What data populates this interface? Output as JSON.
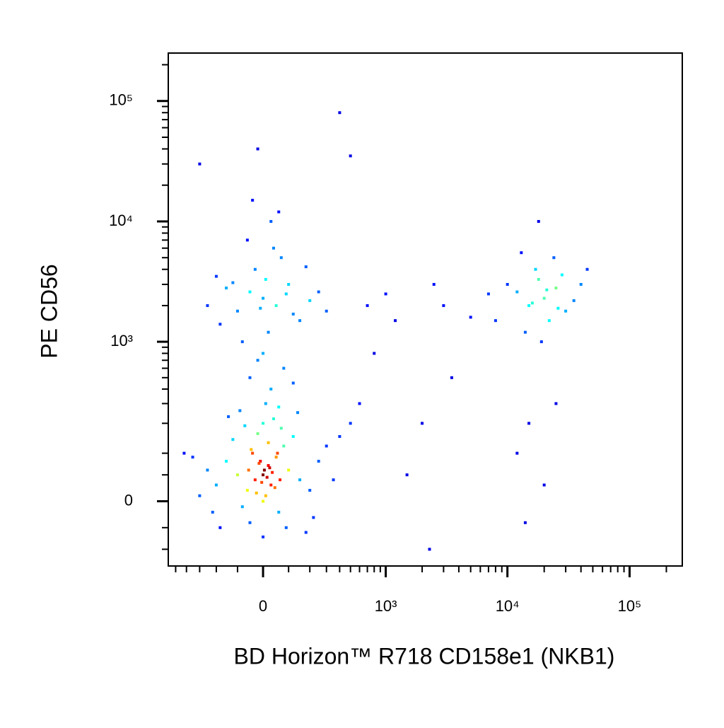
{
  "chart_data": {
    "type": "scatter",
    "xlabel": "BD Horizon™ R718 CD158e1 (NKB1)",
    "ylabel": "PE CD56",
    "xscale": "biexponential",
    "yscale": "biexponential",
    "colormap": "jet",
    "xlim": [
      -580,
      270000
    ],
    "ylim": [
      -150,
      250000
    ],
    "xticks": [
      {
        "value": 0,
        "label": "0"
      },
      {
        "value": 1000,
        "label": "10³"
      },
      {
        "value": 10000,
        "label": "10⁴"
      },
      {
        "value": 100000,
        "label": "10⁵"
      }
    ],
    "yticks": [
      {
        "value": 0,
        "label": "0"
      },
      {
        "value": 1000,
        "label": "10³"
      },
      {
        "value": 10000,
        "label": "10⁴"
      },
      {
        "value": 100000,
        "label": "10⁵"
      }
    ],
    "xminorticks": [
      -500,
      -400,
      -300,
      -200,
      -100,
      100,
      200,
      300,
      400,
      500,
      600,
      700,
      800,
      900,
      2000,
      3000,
      4000,
      5000,
      6000,
      7000,
      8000,
      9000,
      20000,
      30000,
      40000,
      50000,
      60000,
      70000,
      80000,
      90000,
      200000
    ],
    "yminorticks": [
      -100,
      -50,
      50,
      100,
      200,
      300,
      400,
      500,
      600,
      700,
      800,
      900,
      2000,
      3000,
      4000,
      5000,
      6000,
      7000,
      8000,
      9000,
      20000,
      30000,
      40000,
      50000,
      60000,
      70000,
      80000,
      90000,
      200000
    ],
    "x": [
      0,
      20,
      -30,
      50,
      -60,
      80,
      10,
      -10,
      30,
      -40,
      100,
      -100,
      60,
      -80,
      150,
      -150,
      120,
      -120,
      200,
      -200,
      0,
      40,
      -50,
      90,
      250,
      -250,
      300,
      -300,
      180,
      -180,
      0,
      20,
      -20,
      70,
      -70,
      140,
      -140,
      350,
      -350,
      220,
      -220,
      10,
      60,
      -90,
      400,
      -420,
      5,
      15,
      -5,
      25,
      -15,
      35,
      45,
      -25,
      55,
      -45,
      65,
      -55,
      0,
      500,
      30,
      -50,
      80,
      -20,
      120,
      0,
      0,
      50,
      -50,
      100,
      -100,
      150,
      -150,
      200,
      -200,
      20,
      -30,
      70,
      -80,
      250,
      -250,
      10,
      120,
      -120,
      180,
      -180,
      40,
      -60,
      90,
      -10,
      300,
      30,
      -40,
      60,
      400,
      -20,
      500,
      -300,
      20000,
      15000,
      25000,
      18000,
      30000,
      12000,
      22000,
      17000,
      28000,
      14000,
      35000,
      10000,
      24000,
      19000,
      40000,
      13000,
      21000,
      16000,
      26000,
      18000,
      45000,
      8000,
      15000,
      12000,
      20000,
      25000,
      14000,
      1000,
      2500,
      3000,
      2000,
      1500,
      3500,
      800,
      600,
      2300,
      700,
      1200,
      5000,
      7000
    ],
    "values": [
      50,
      70,
      40,
      90,
      20,
      120,
      10,
      80,
      30,
      100,
      60,
      50,
      -20,
      -10,
      40,
      80,
      150,
      140,
      20,
      30,
      200,
      220,
      -40,
      -50,
      80,
      60,
      120,
      10,
      -60,
      -50,
      -70,
      130,
      160,
      180,
      190,
      250,
      230,
      40,
      90,
      -30,
      -20,
      300,
      280,
      260,
      150,
      100,
      60,
      45,
      35,
      65,
      75,
      55,
      25,
      15,
      100,
      110,
      40,
      60,
      0,
      200,
      400,
      500,
      600,
      700,
      450,
      800,
      2300,
      2000,
      2600,
      3000,
      1800,
      1500,
      2800,
      2200,
      3500,
      1200,
      4000,
      5000,
      1000,
      2600,
      2000,
      3300,
      1700,
      3100,
      4200,
      1400,
      6000,
      7000,
      2500,
      1900,
      1800,
      10000,
      15000,
      12000,
      80000,
      40000,
      35000,
      30000,
      2300,
      2000,
      2800,
      3300,
      1800,
      2600,
      1500,
      4000,
      3600,
      1200,
      2200,
      3000,
      5000,
      1000,
      3000,
      5500,
      2700,
      2100,
      1900,
      10000,
      4000,
      1500,
      200,
      100,
      30,
      300,
      -40,
      2500,
      3000,
      2000,
      200,
      50,
      500,
      800,
      300,
      -100,
      2000,
      1500,
      1600,
      2500
    ]
  }
}
